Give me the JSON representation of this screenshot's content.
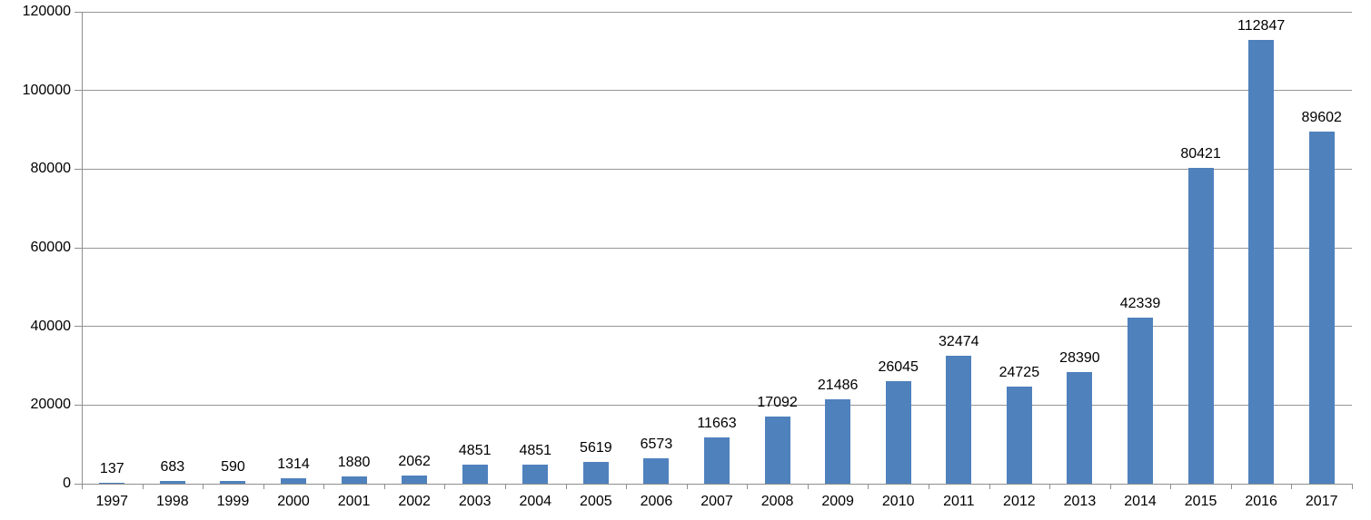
{
  "chart_data": {
    "type": "bar",
    "title": "",
    "xlabel": "",
    "ylabel": "",
    "categories": [
      "1997",
      "1998",
      "1999",
      "2000",
      "2001",
      "2002",
      "2003",
      "2004",
      "2005",
      "2006",
      "2007",
      "2008",
      "2009",
      "2010",
      "2011",
      "2012",
      "2013",
      "2014",
      "2015",
      "2016",
      "2017"
    ],
    "values": [
      137,
      683,
      590,
      1314,
      1880,
      2062,
      4851,
      4851,
      5619,
      6573,
      11663,
      17092,
      21486,
      26045,
      32474,
      24725,
      28390,
      42339,
      80421,
      112847,
      89602
    ],
    "ylim": [
      0,
      120000
    ],
    "yticks": [
      0,
      20000,
      40000,
      60000,
      80000,
      100000,
      120000
    ],
    "ytick_labels": [
      "0",
      "20000",
      "40000",
      "60000",
      "80000",
      "100000",
      "120000"
    ],
    "grid": true,
    "legend_position": "none",
    "data_labels": true,
    "colors": {
      "bar_fill": "#4f81bd",
      "gridline": "#969696",
      "axis": "#8e8e8e",
      "text": "#000000",
      "background": "#ffffff"
    }
  }
}
